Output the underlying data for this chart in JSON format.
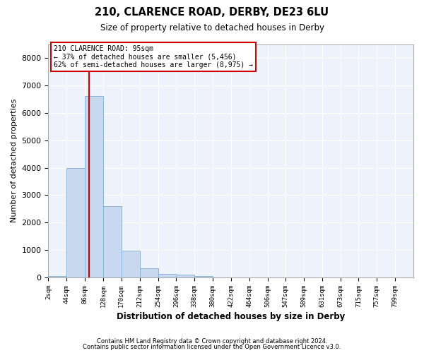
{
  "title1": "210, CLARENCE ROAD, DERBY, DE23 6LU",
  "title2": "Size of property relative to detached houses in Derby",
  "xlabel": "Distribution of detached houses by size in Derby",
  "ylabel": "Number of detached properties",
  "bar_color": "#c8d8ee",
  "bar_edge_color": "#8ab4d8",
  "background_color": "#eef2fb",
  "grid_color": "#ffffff",
  "property_line_color": "#cc0000",
  "property_size": 95,
  "annotation_line1": "210 CLARENCE ROAD: 95sqm",
  "annotation_line2": "← 37% of detached houses are smaller (5,456)",
  "annotation_line3": "62% of semi-detached houses are larger (8,975) →",
  "footer1": "Contains HM Land Registry data © Crown copyright and database right 2024.",
  "footer2": "Contains public sector information licensed under the Open Government Licence v3.0.",
  "bin_edges": [
    2,
    44,
    86,
    128,
    170,
    212,
    254,
    296,
    338,
    380,
    422,
    464,
    506,
    547,
    589,
    631,
    673,
    715,
    757,
    799,
    841
  ],
  "counts": [
    50,
    4000,
    6600,
    2600,
    975,
    330,
    130,
    110,
    60,
    0,
    0,
    0,
    0,
    0,
    0,
    0,
    0,
    0,
    0,
    0
  ],
  "ylim": [
    0,
    8500
  ],
  "yticks": [
    0,
    1000,
    2000,
    3000,
    4000,
    5000,
    6000,
    7000,
    8000
  ]
}
